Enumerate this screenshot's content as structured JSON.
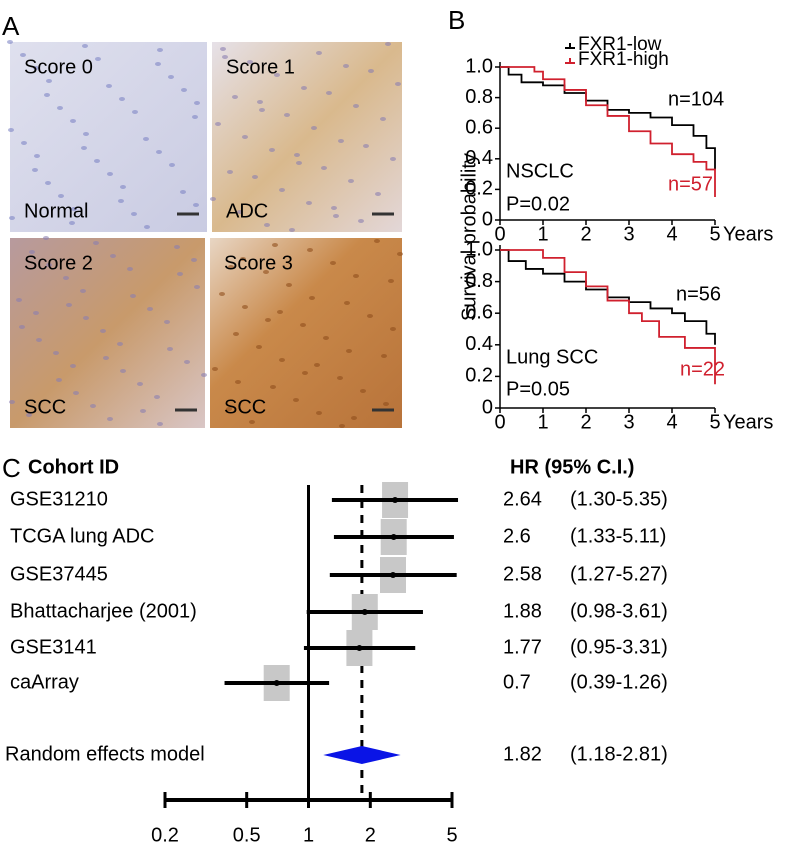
{
  "panel_labels": [
    "A",
    "B",
    "C"
  ],
  "panel_a": {
    "images": [
      {
        "score": "Score 0",
        "tissue": "Normal"
      },
      {
        "score": "Score 1",
        "tissue": "ADC"
      },
      {
        "score": "Score 2",
        "tissue": "SCC"
      },
      {
        "score": "Score 3",
        "tissue": "SCC"
      }
    ]
  },
  "chart_data": [
    {
      "type": "step",
      "ylabel": "Survival probability",
      "xlabel": "Years",
      "xlim": [
        0,
        5
      ],
      "xticks": [
        0,
        1,
        2,
        3,
        4,
        5
      ],
      "ylim": [
        0,
        1
      ],
      "yticks": [
        0,
        0.2,
        0.4,
        0.6,
        0.8,
        {
          "value": 1,
          "label": "1.0"
        }
      ],
      "series": [
        {
          "name": "FXR1-low",
          "color": "#000000",
          "x": [
            0,
            0.2,
            0.5,
            1,
            1.5,
            2,
            2.5,
            3,
            3.5,
            4,
            4.5,
            4.8,
            5
          ],
          "values": [
            1,
            0.95,
            0.9,
            0.88,
            0.83,
            0.78,
            0.72,
            0.7,
            0.67,
            0.62,
            0.55,
            0.47,
            0.33
          ]
        },
        {
          "name": "FXR1-high",
          "color": "#d0202e",
          "x": [
            0,
            0.8,
            1,
            1.5,
            2,
            2.5,
            3,
            3.5,
            4,
            4.5,
            4.8,
            5
          ],
          "values": [
            1,
            0.97,
            0.92,
            0.85,
            0.75,
            0.68,
            0.58,
            0.5,
            0.43,
            0.38,
            0.33,
            0.15
          ]
        }
      ],
      "annotations": [
        {
          "text": "n=104",
          "color": "#000000"
        },
        {
          "text": "n=57",
          "color": "#d0202e"
        },
        {
          "text": "NSCLC",
          "color": "#000000"
        },
        {
          "text": "P=0.02",
          "color": "#000000"
        }
      ]
    },
    {
      "type": "step",
      "xlabel": "Years",
      "xlim": [
        0,
        5
      ],
      "xticks": [
        0,
        1,
        2,
        3,
        4,
        5
      ],
      "ylim": [
        0,
        1
      ],
      "yticks": [
        0,
        0.2,
        0.4,
        0.6,
        0.8,
        {
          "value": 1,
          "label": "1.0"
        }
      ],
      "series": [
        {
          "color": "#000000",
          "x": [
            0,
            0.2,
            0.6,
            1,
            1.5,
            2,
            2.5,
            3,
            3.5,
            4,
            4.3,
            4.8,
            5
          ],
          "values": [
            1,
            0.93,
            0.88,
            0.85,
            0.8,
            0.75,
            0.7,
            0.67,
            0.63,
            0.6,
            0.55,
            0.47,
            0.4
          ]
        },
        {
          "color": "#d0202e",
          "x": [
            0,
            1,
            1.5,
            2,
            2.5,
            3,
            3.3,
            3.7,
            4.3,
            5
          ],
          "values": [
            1,
            0.95,
            0.86,
            0.77,
            0.68,
            0.6,
            0.55,
            0.45,
            0.38,
            0.15
          ]
        }
      ],
      "annotations": [
        {
          "text": "n=56",
          "color": "#000000"
        },
        {
          "text": "n=22",
          "color": "#d0202e"
        },
        {
          "text": "Lung SCC",
          "color": "#000000"
        },
        {
          "text": "P=0.05",
          "color": "#000000"
        }
      ]
    },
    {
      "type": "forest",
      "column_headers": [
        "Cohort ID",
        "HR (95% C.I.)"
      ],
      "log_x": true,
      "xlim": [
        0.2,
        5
      ],
      "xticks": [
        0.2,
        0.5,
        1,
        2,
        5
      ],
      "categories": [
        "GSE31210",
        "TCGA lung ADC",
        "GSE37445",
        "Bhattacharjee (2001)",
        "GSE3141",
        "caArray"
      ],
      "values": [
        2.64,
        2.6,
        2.58,
        1.88,
        1.77,
        0.7
      ],
      "lower": [
        1.3,
        1.33,
        1.27,
        0.98,
        0.95,
        0.39
      ],
      "upper": [
        5.35,
        5.11,
        5.27,
        3.61,
        3.31,
        1.26
      ],
      "ci_labels": [
        "(1.30-5.35)",
        "(1.33-5.11)",
        "(1.27-5.27)",
        "(0.98-3.61)",
        "(0.95-3.31)",
        "(0.39-1.26)"
      ],
      "summary": {
        "name": "Random effects model",
        "value": 1.82,
        "lower": 1.18,
        "upper": 2.81,
        "ci_label": "(1.18-2.81)",
        "color": "#0a14e6"
      },
      "box_color": "#c8c8c8"
    }
  ]
}
